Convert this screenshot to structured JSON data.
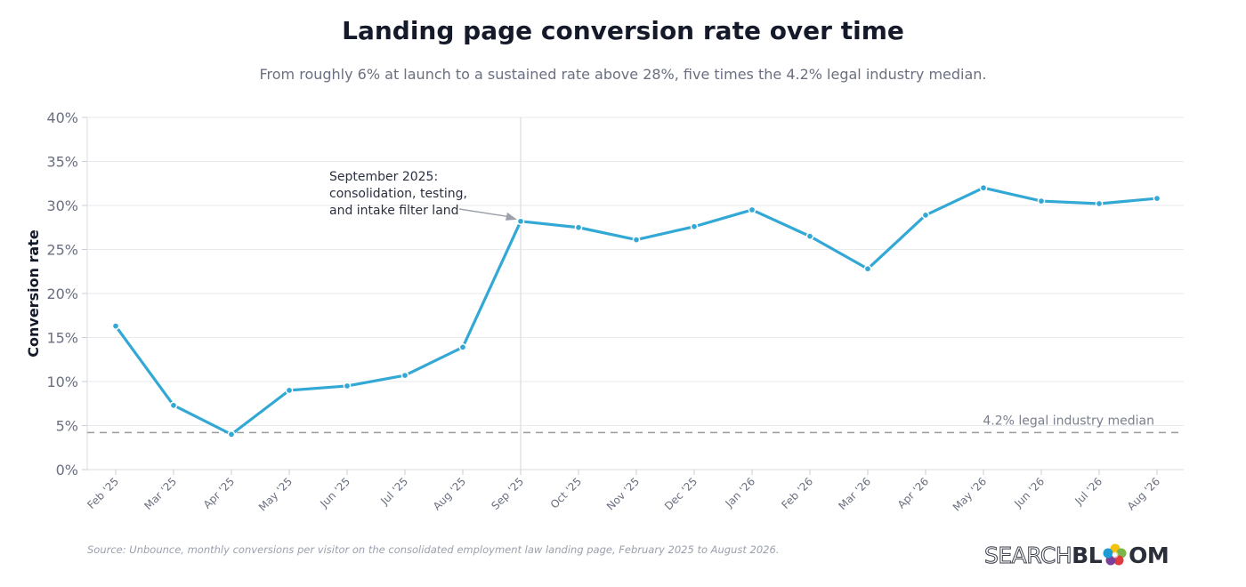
{
  "chart_data": {
    "type": "line",
    "title": "Landing page conversion rate over time",
    "subtitle": "From roughly 6% at launch to a sustained rate above 28%, five times the 4.2% legal industry median.",
    "ylabel": "Conversion rate",
    "xlabel": "",
    "ylim": [
      0,
      40
    ],
    "yticks": [
      "0%",
      "5%",
      "10%",
      "15%",
      "20%",
      "25%",
      "30%",
      "35%",
      "40%"
    ],
    "categories": [
      "Feb '25",
      "Mar '25",
      "Apr '25",
      "May '25",
      "Jun '25",
      "Jul '25",
      "Aug '25",
      "Sep '25",
      "Oct '25",
      "Nov '25",
      "Dec '25",
      "Jan '26",
      "Feb '26",
      "Mar '26",
      "Apr '26",
      "May '26",
      "Jun '26",
      "Jul '26",
      "Aug '26"
    ],
    "values": [
      16.3,
      7.3,
      4.0,
      9.0,
      9.5,
      10.7,
      13.9,
      28.2,
      27.5,
      26.1,
      27.6,
      29.5,
      26.5,
      22.8,
      28.9,
      32.0,
      30.5,
      30.2,
      30.8
    ],
    "grid": true,
    "reference_line": {
      "value": 4.2,
      "label": "4.2% legal industry median"
    },
    "annotation": {
      "category": "Sep '25",
      "lines": [
        "September 2025:",
        "consolidation, testing,",
        "and intake filter land"
      ]
    },
    "line_color": "#32a8d4",
    "reference_color": "#9a9a9a"
  },
  "footer": {
    "source": "Source: Unbounce, monthly conversions per visitor on the consolidated employment law landing page, February 2025 to August 2026."
  },
  "logo": {
    "part_a": "SEARCH",
    "part_b": "BL",
    "part_c": "OM",
    "icon": "flower-icon"
  }
}
